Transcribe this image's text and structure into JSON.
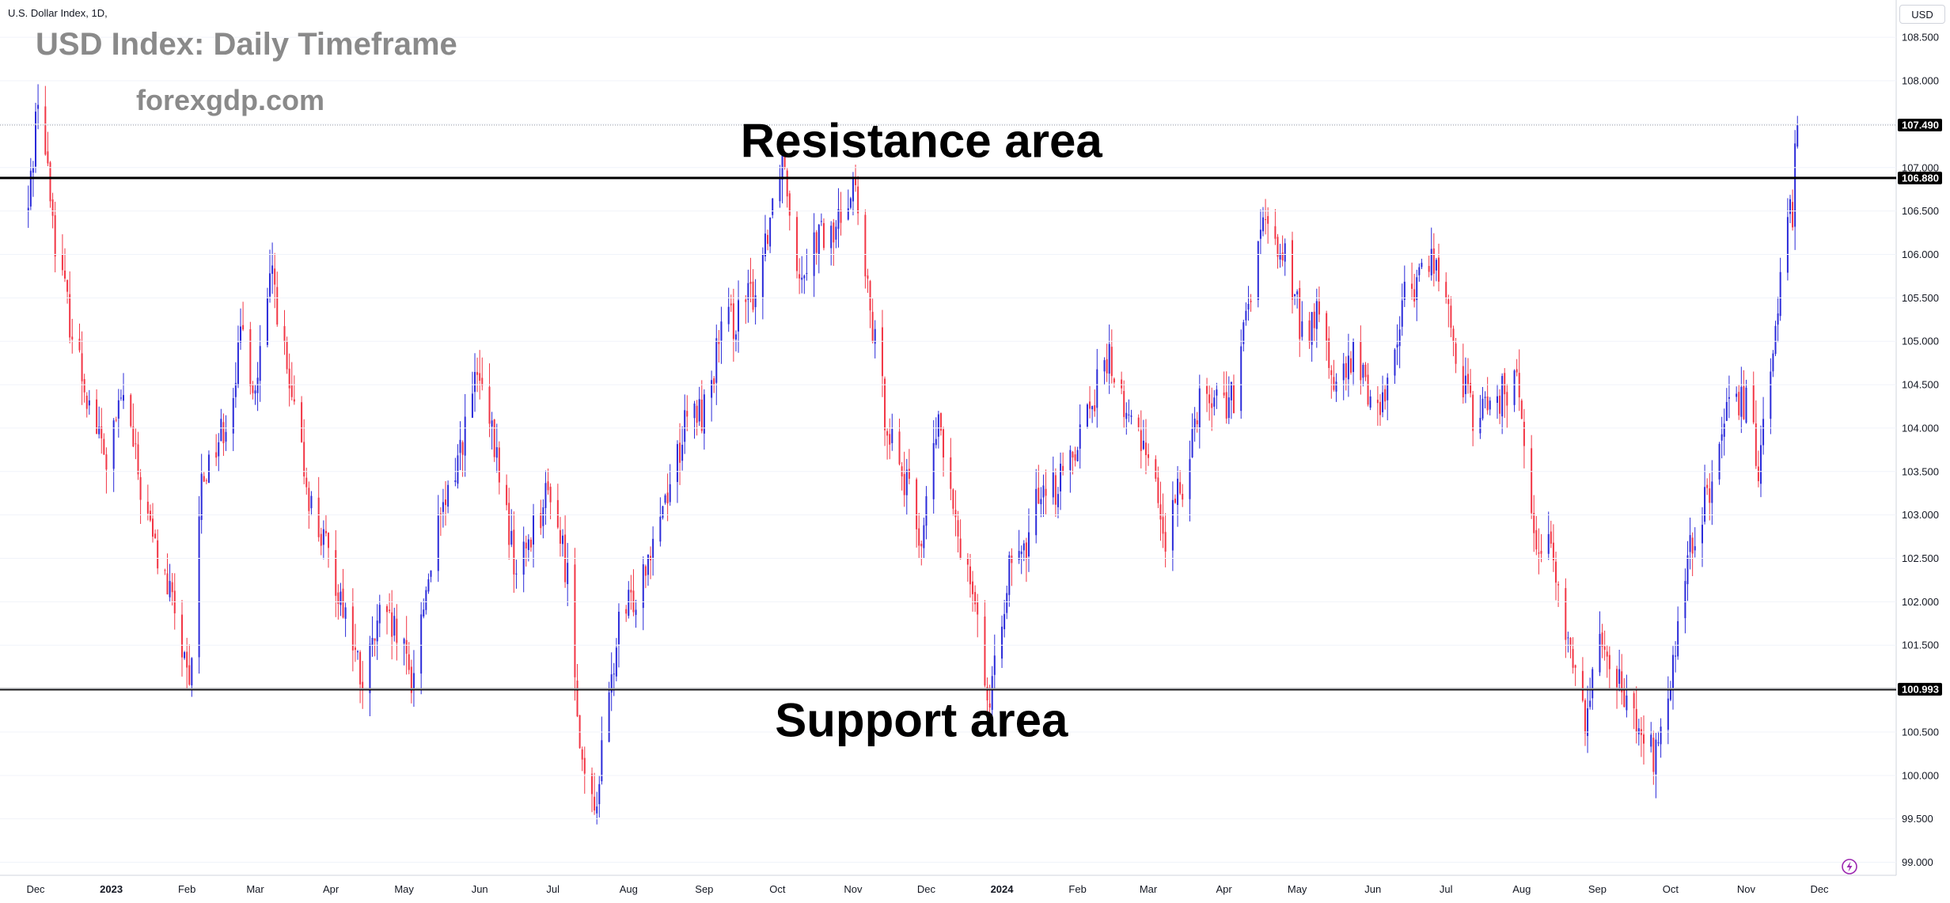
{
  "chart_header": {
    "symbol_info": "U.S. Dollar Index, 1D,",
    "title": "USD Index: Daily Timeframe",
    "watermark": "forexgdp.com",
    "currency": "USD"
  },
  "colors": {
    "up": "#2b2bd9",
    "down": "#f23645",
    "level_line": "#000000",
    "axis_text": "#131722",
    "grid": "#f0f3fa",
    "title_text": "#8a8a8a"
  },
  "chart_data": {
    "type": "candlestick",
    "title": "USD Index: Daily Timeframe",
    "xlabel": "",
    "ylabel": "",
    "ylim": [
      98.85,
      108.93
    ],
    "yticks": [
      "108.500",
      "108.000",
      "107.500",
      "107.000",
      "106.500",
      "106.000",
      "105.500",
      "105.000",
      "104.500",
      "104.000",
      "103.500",
      "103.000",
      "102.500",
      "102.000",
      "101.500",
      "101.000",
      "100.500",
      "100.000",
      "99.500",
      "99.000"
    ],
    "xticks": [
      "Dec",
      "2023",
      "Feb",
      "Mar",
      "Apr",
      "May",
      "Jun",
      "Jul",
      "Aug",
      "Sep",
      "Oct",
      "Nov",
      "Dec",
      "2024",
      "Feb",
      "Mar",
      "Apr",
      "May",
      "Jun",
      "Jul",
      "Aug",
      "Sep",
      "Oct",
      "Nov",
      "Dec"
    ],
    "last_price": 107.49,
    "levels": [
      {
        "name": "Resistance area",
        "value": 106.88,
        "label": "106.880"
      },
      {
        "name": "Support area",
        "value": 100.993,
        "label": "100.993"
      }
    ],
    "price_label": "107.490",
    "path": [
      {
        "date": "2022-11-28",
        "close": 106.5
      },
      {
        "date": "2022-12-02",
        "close": 107.9
      },
      {
        "date": "2022-12-09",
        "close": 106.2
      },
      {
        "date": "2022-12-16",
        "close": 105.1
      },
      {
        "date": "2022-12-23",
        "close": 104.3
      },
      {
        "date": "2022-12-30",
        "close": 103.6
      },
      {
        "date": "2023-01-06",
        "close": 104.4
      },
      {
        "date": "2023-01-13",
        "close": 103.3
      },
      {
        "date": "2023-01-20",
        "close": 102.5
      },
      {
        "date": "2023-01-27",
        "close": 101.9
      },
      {
        "date": "2023-02-02",
        "close": 100.9
      },
      {
        "date": "2023-02-07",
        "close": 103.4
      },
      {
        "date": "2023-02-17",
        "close": 104.1
      },
      {
        "date": "2023-02-24",
        "close": 105.1
      },
      {
        "date": "2023-03-01",
        "close": 104.4
      },
      {
        "date": "2023-03-08",
        "close": 105.8
      },
      {
        "date": "2023-03-15",
        "close": 104.4
      },
      {
        "date": "2023-03-24",
        "close": 103.1
      },
      {
        "date": "2023-03-31",
        "close": 102.5
      },
      {
        "date": "2023-04-07",
        "close": 101.9
      },
      {
        "date": "2023-04-14",
        "close": 101.0
      },
      {
        "date": "2023-04-21",
        "close": 101.8
      },
      {
        "date": "2023-04-28",
        "close": 101.6
      },
      {
        "date": "2023-05-04",
        "close": 101.1
      },
      {
        "date": "2023-05-12",
        "close": 102.5
      },
      {
        "date": "2023-05-19",
        "close": 103.2
      },
      {
        "date": "2023-05-31",
        "close": 104.6
      },
      {
        "date": "2023-06-09",
        "close": 103.5
      },
      {
        "date": "2023-06-16",
        "close": 102.3
      },
      {
        "date": "2023-06-23",
        "close": 102.9
      },
      {
        "date": "2023-06-30",
        "close": 103.3
      },
      {
        "date": "2023-07-07",
        "close": 102.3
      },
      {
        "date": "2023-07-14",
        "close": 99.8
      },
      {
        "date": "2023-07-18",
        "close": 99.6
      },
      {
        "date": "2023-07-28",
        "close": 101.7
      },
      {
        "date": "2023-08-04",
        "close": 102.1
      },
      {
        "date": "2023-08-11",
        "close": 102.8
      },
      {
        "date": "2023-08-18",
        "close": 103.4
      },
      {
        "date": "2023-08-25",
        "close": 104.1
      },
      {
        "date": "2023-09-01",
        "close": 104.2
      },
      {
        "date": "2023-09-08",
        "close": 105.1
      },
      {
        "date": "2023-09-15",
        "close": 105.3
      },
      {
        "date": "2023-09-22",
        "close": 105.6
      },
      {
        "date": "2023-10-03",
        "close": 107.2
      },
      {
        "date": "2023-10-10",
        "close": 105.8
      },
      {
        "date": "2023-10-17",
        "close": 106.2
      },
      {
        "date": "2023-10-24",
        "close": 106.2
      },
      {
        "date": "2023-11-01",
        "close": 106.9
      },
      {
        "date": "2023-11-07",
        "close": 105.5
      },
      {
        "date": "2023-11-14",
        "close": 104.2
      },
      {
        "date": "2023-11-21",
        "close": 103.5
      },
      {
        "date": "2023-11-29",
        "close": 102.7
      },
      {
        "date": "2023-12-06",
        "close": 104.1
      },
      {
        "date": "2023-12-13",
        "close": 102.8
      },
      {
        "date": "2023-12-20",
        "close": 102.3
      },
      {
        "date": "2023-12-27",
        "close": 100.7
      },
      {
        "date": "2024-01-03",
        "close": 102.3
      },
      {
        "date": "2024-01-10",
        "close": 102.5
      },
      {
        "date": "2024-01-17",
        "close": 103.4
      },
      {
        "date": "2024-01-24",
        "close": 103.3
      },
      {
        "date": "2024-02-02",
        "close": 104.0
      },
      {
        "date": "2024-02-14",
        "close": 104.8
      },
      {
        "date": "2024-02-21",
        "close": 104.1
      },
      {
        "date": "2024-03-01",
        "close": 103.8
      },
      {
        "date": "2024-03-08",
        "close": 102.7
      },
      {
        "date": "2024-03-15",
        "close": 103.4
      },
      {
        "date": "2024-03-22",
        "close": 104.4
      },
      {
        "date": "2024-04-05",
        "close": 104.3
      },
      {
        "date": "2024-04-12",
        "close": 105.6
      },
      {
        "date": "2024-04-16",
        "close": 106.3
      },
      {
        "date": "2024-04-26",
        "close": 106.0
      },
      {
        "date": "2024-05-03",
        "close": 105.1
      },
      {
        "date": "2024-05-10",
        "close": 105.3
      },
      {
        "date": "2024-05-17",
        "close": 104.4
      },
      {
        "date": "2024-05-24",
        "close": 104.8
      },
      {
        "date": "2024-06-04",
        "close": 104.2
      },
      {
        "date": "2024-06-14",
        "close": 105.5
      },
      {
        "date": "2024-06-26",
        "close": 106.0
      },
      {
        "date": "2024-07-05",
        "close": 104.9
      },
      {
        "date": "2024-07-12",
        "close": 104.1
      },
      {
        "date": "2024-07-19",
        "close": 104.3
      },
      {
        "date": "2024-07-31",
        "close": 104.5
      },
      {
        "date": "2024-08-05",
        "close": 102.9
      },
      {
        "date": "2024-08-14",
        "close": 102.5
      },
      {
        "date": "2024-08-20",
        "close": 101.5
      },
      {
        "date": "2024-08-27",
        "close": 100.7
      },
      {
        "date": "2024-09-03",
        "close": 101.7
      },
      {
        "date": "2024-09-13",
        "close": 100.8
      },
      {
        "date": "2024-09-24",
        "close": 100.2
      },
      {
        "date": "2024-10-01",
        "close": 101.0
      },
      {
        "date": "2024-10-08",
        "close": 102.5
      },
      {
        "date": "2024-10-18",
        "close": 103.4
      },
      {
        "date": "2024-10-25",
        "close": 104.2
      },
      {
        "date": "2024-11-01",
        "close": 104.3
      },
      {
        "date": "2024-11-06",
        "close": 103.6
      },
      {
        "date": "2024-11-14",
        "close": 105.5
      },
      {
        "date": "2024-11-19",
        "close": 106.8
      },
      {
        "date": "2024-11-20",
        "close": 106.1
      },
      {
        "date": "2024-11-21",
        "close": 107.1
      },
      {
        "date": "2024-11-22",
        "close": 107.49
      }
    ],
    "annotations": [
      {
        "text": "Resistance area",
        "x": "2023-11-29",
        "y": 107.12
      },
      {
        "text": "Support area",
        "x": "2023-11-29",
        "y": 100.45
      }
    ]
  }
}
